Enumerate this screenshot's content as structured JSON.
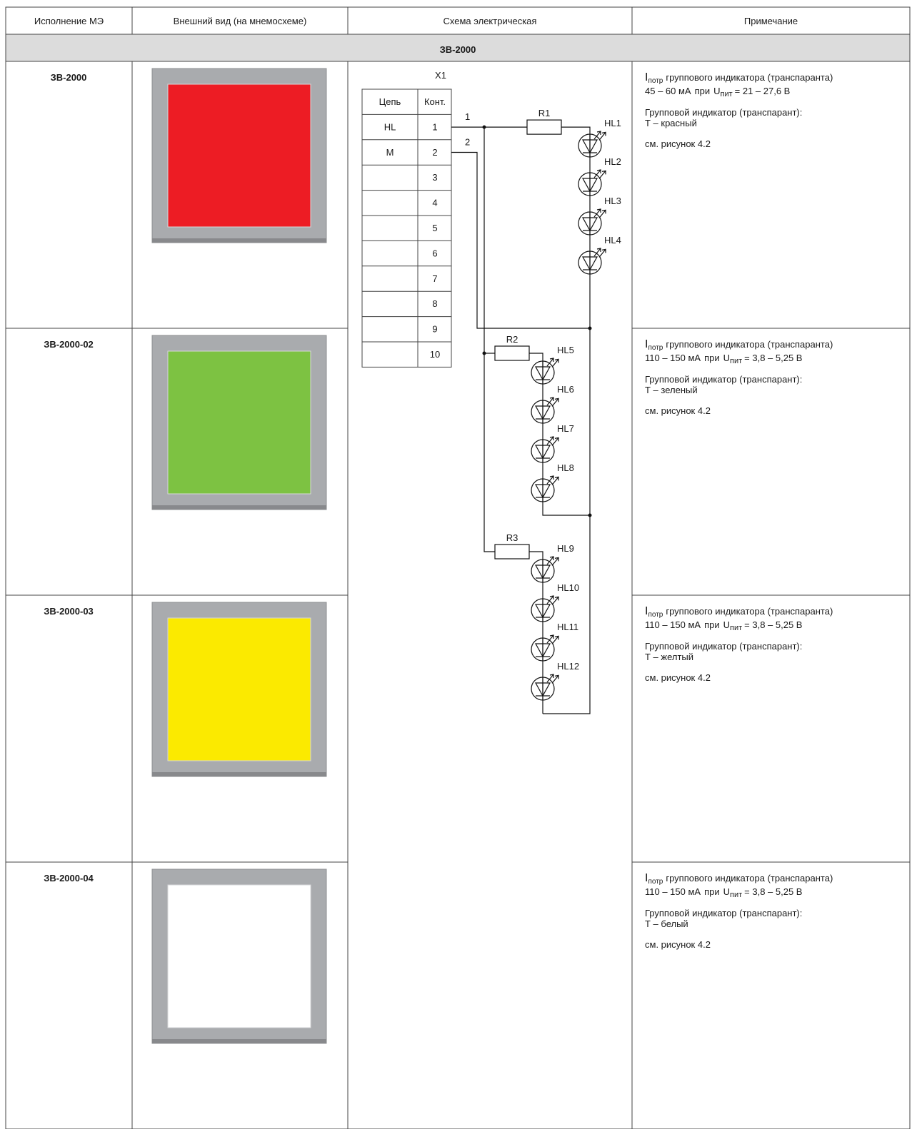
{
  "header": {
    "columns": [
      "Исполнение МЭ",
      "Внешний вид (на мнемосхеме)",
      "Схема электрическая",
      "Примечание"
    ]
  },
  "section": "ЗВ-2000",
  "rows": [
    {
      "model": "ЗВ-2000",
      "color": "#ed1c24",
      "note": {
        "current_symbol": "I",
        "current_sub": "потр",
        "current_desc": "группового индикатора (транспаранта)",
        "current_range": "45 – 60 мА",
        "at": "при",
        "voltage_symbol": "U",
        "voltage_sub": "пит",
        "voltage_range": "= 21 – 27,6 В",
        "indicator": "Групповой индикатор (транспарант):",
        "indicator_color": "Т – красный",
        "reference": "см. рисунок 4.2"
      }
    },
    {
      "model": "ЗВ-2000-02",
      "color": "#7dc242",
      "note": {
        "current_symbol": "I",
        "current_sub": "потр",
        "current_desc": "группового индикатора (транспаранта)",
        "current_range": "110 – 150 мА",
        "at": "при",
        "voltage_symbol": "U",
        "voltage_sub": "пит",
        "voltage_range": "= 3,8 – 5,25 В",
        "indicator": "Групповой индикатор (транспарант):",
        "indicator_color": "Т – зеленый",
        "reference": "см. рисунок 4.2"
      }
    },
    {
      "model": "ЗВ-2000-03",
      "color": "#fbea00",
      "note": {
        "current_symbol": "I",
        "current_sub": "потр",
        "current_desc": "группового индикатора (транспаранта)",
        "current_range": "110 – 150 мА",
        "at": "при",
        "voltage_symbol": "U",
        "voltage_sub": "пит",
        "voltage_range": "= 3,8 – 5,25 В",
        "indicator": "Групповой индикатор (транспарант):",
        "indicator_color": "Т – желтый",
        "reference": "см. рисунок 4.2"
      }
    },
    {
      "model": "ЗВ-2000-04",
      "color": "#ffffff",
      "note": {
        "current_symbol": "I",
        "current_sub": "потр",
        "current_desc": "группового индикатора (транспаранта)",
        "current_range": "110 – 150 мА",
        "at": "при",
        "voltage_symbol": "U",
        "voltage_sub": "пит",
        "voltage_range": "= 3,8 – 5,25 В",
        "indicator": "Групповой индикатор (транспарант):",
        "indicator_color": "Т – белый",
        "reference": "см. рисунок 4.2"
      }
    }
  ],
  "schematic": {
    "connector": "X1",
    "columns": [
      "Цепь",
      "Конт."
    ],
    "circuits": [
      "HL",
      "M"
    ],
    "contacts": [
      "1",
      "2",
      "3",
      "4",
      "5",
      "6",
      "7",
      "8",
      "9",
      "10"
    ],
    "wires": [
      "1",
      "2"
    ],
    "resistors": [
      "R1",
      "R2",
      "R3"
    ],
    "leds": [
      "HL1",
      "HL2",
      "HL3",
      "HL4",
      "HL5",
      "HL6",
      "HL7",
      "HL8",
      "HL9",
      "HL10",
      "HL11",
      "HL12"
    ]
  }
}
